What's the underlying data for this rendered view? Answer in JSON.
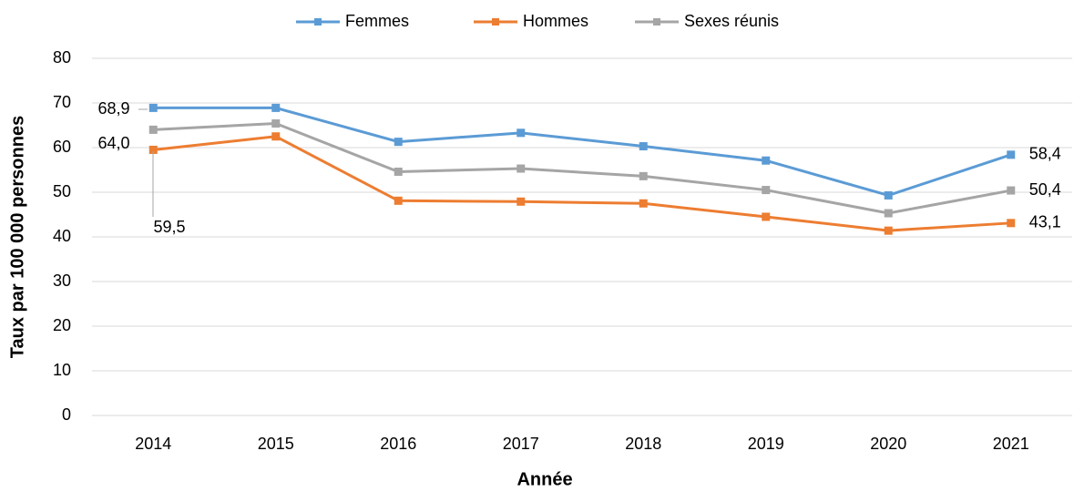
{
  "chart_data": {
    "type": "line",
    "x_label": "Année",
    "y_label": "Taux par 100 000 personnes",
    "categories": [
      "2014",
      "2015",
      "2016",
      "2017",
      "2018",
      "2019",
      "2020",
      "2021"
    ],
    "series": [
      {
        "name": "Femmes",
        "color": "#5b9bd5",
        "values": [
          68.9,
          68.9,
          61.3,
          63.3,
          60.3,
          57.1,
          49.3,
          58.4
        ],
        "value_labels": [
          "68,9",
          null,
          null,
          null,
          null,
          null,
          null,
          "58,4"
        ]
      },
      {
        "name": "Hommes",
        "color": "#ed7d31",
        "values": [
          59.5,
          62.5,
          48.1,
          47.9,
          47.5,
          44.5,
          41.4,
          43.1
        ],
        "value_labels": [
          "59,5",
          null,
          null,
          null,
          null,
          null,
          null,
          "43,1"
        ]
      },
      {
        "name": "Sexes réunis",
        "color": "#a5a5a5",
        "values": [
          64.0,
          65.4,
          54.6,
          55.3,
          53.6,
          50.5,
          45.3,
          50.4
        ],
        "value_labels": [
          "64,0",
          null,
          null,
          null,
          null,
          null,
          null,
          "50,4"
        ]
      }
    ],
    "ylim": [
      0,
      80
    ],
    "yticks": [
      0,
      10,
      20,
      30,
      40,
      50,
      60,
      70,
      80
    ],
    "grid": true,
    "legend": "top"
  }
}
